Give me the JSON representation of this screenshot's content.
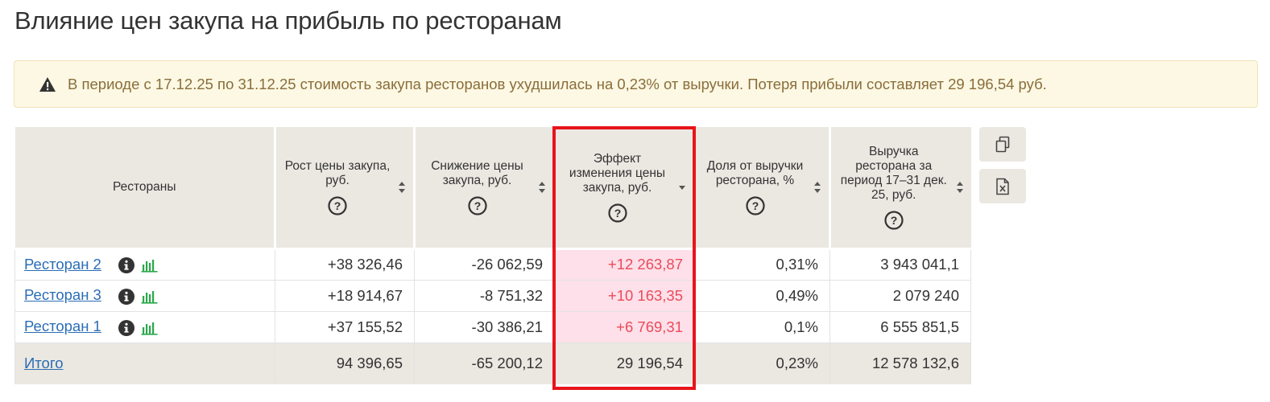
{
  "page": {
    "title": "Влияние цен закупа на прибыль по ресторанам"
  },
  "alert": {
    "icon": "warning-triangle-icon",
    "text": "В периоде с 17.12.25 по 31.12.25 стоимость закупа ресторанов ухудшилась на 0,23% от выручки. Потеря прибыли составляет 29 196,54 руб."
  },
  "table": {
    "columns": [
      {
        "label": "Рестораны"
      },
      {
        "label": "Рост цены закупа, руб.",
        "sort": "both"
      },
      {
        "label": "Снижение цены закупа, руб.",
        "sort": "both"
      },
      {
        "label": "Эффект изменения цены закупа, руб.",
        "sort": "desc"
      },
      {
        "label": "Доля от выручки ресторана, %",
        "sort": "both"
      },
      {
        "label": "Выручка ресторана за период 17–31 дек. 25, руб.",
        "sort": "both"
      }
    ],
    "rows": [
      {
        "name": "Ресторан 2",
        "growth": "+38 326,46",
        "decrease": "-26 062,59",
        "effect": "+12 263,87",
        "share": "0,31%",
        "revenue": "3 943 041,1"
      },
      {
        "name": "Ресторан 3",
        "growth": "+18 914,67",
        "decrease": "-8 751,32",
        "effect": "+10 163,35",
        "share": "0,49%",
        "revenue": "2 079 240"
      },
      {
        "name": "Ресторан 1",
        "growth": "+37 155,52",
        "decrease": "-30 386,21",
        "effect": "+6 769,31",
        "share": "0,1%",
        "revenue": "6 555 851,5"
      }
    ],
    "total": {
      "name": "Итого",
      "growth": "94 396,65",
      "decrease": "-65 200,12",
      "effect": "29 196,54",
      "share": "0,23%",
      "revenue": "12 578 132,6"
    }
  },
  "side_buttons": [
    {
      "icon": "copy-icon"
    },
    {
      "icon": "excel-export-icon"
    }
  ],
  "colors": {
    "accent_link": "#2a6db5",
    "effect_text": "#ec4a5a",
    "effect_bg": "#fde0e9",
    "highlight_border": "#e8141c",
    "alert_bg": "#fcf8e3",
    "alert_text": "#8a6d3b",
    "bar_chart_icon": "#2aa84a"
  }
}
